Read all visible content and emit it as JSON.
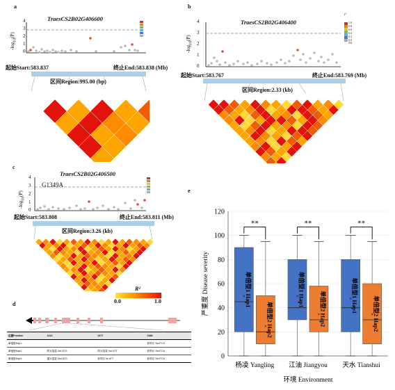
{
  "panels": {
    "a": {
      "label": "a",
      "title": "TraesCS2B02G406600",
      "start": "起始Start:583.837",
      "end": "终止End:583.838 (Mb)",
      "region": "区间Region:995.00 (bp)",
      "y_ticks": [
        "0",
        "1",
        "2",
        "3",
        "4"
      ]
    },
    "b": {
      "label": "b",
      "title": "TraesCS2B02G406400",
      "start": "起始Start:583.767",
      "end": "终止End:583.769 (Mb)",
      "region": "区间Region:2.33 (kb)",
      "y_ticks": [
        "0",
        "1",
        "2",
        "3",
        "4"
      ],
      "legend_title": "r²",
      "legend_values": [
        "1.0",
        "0.8",
        "0.6",
        "0.4",
        "0.2",
        "0.0",
        "NA"
      ]
    },
    "c": {
      "label": "c",
      "title": "TraesCS2B02G406500",
      "start": "起始Start:583.808",
      "end": "终止End:583.811 (Mb)",
      "region": "区间Region:3.26 (kb)",
      "snp": "G1349A",
      "y_ticks": [
        "0",
        "1",
        "2",
        "3",
        "4"
      ]
    },
    "ld_scale": {
      "title": "R²",
      "min": "0.0",
      "max": "1.0"
    },
    "d": {
      "label": "d",
      "table": {
        "header": [
          "位置Position",
          "1413",
          "2377",
          "2388"
        ],
        "rows": [
          [
            "单倍型Hap1",
            "",
            "",
            "非同义 Ser/TCG"
          ],
          [
            "单倍型Hap2",
            "同义突变 Val GTG",
            "同义突变 Val GTT",
            "非同义 Ser/TCA"
          ],
          [
            "单倍型Hap3",
            "错义突变 Met ATG",
            "非同义 Ile ATT",
            "非同义 Ser/TCA"
          ]
        ]
      }
    },
    "e": {
      "label": "e",
      "ylabel": "严重度 Disease severity",
      "xlabel": "环境 Environment"
    }
  },
  "chart_data": {
    "type": "box",
    "categories": [
      "杨凌 Yangling",
      "江油 Jiangyou",
      "天水 Tianshui"
    ],
    "ylim": [
      0,
      120
    ],
    "yticks": [
      0,
      20,
      40,
      60,
      80,
      100,
      120
    ],
    "grid": true,
    "significance": [
      "**",
      "**",
      "**"
    ],
    "series": [
      {
        "name": "单倍型1 Hap1",
        "color": "#4472C4",
        "boxes": [
          {
            "min": 0,
            "q1": 20,
            "median": 45,
            "mean": 50,
            "q3": 90,
            "max": 100
          },
          {
            "min": 0,
            "q1": 30,
            "median": 40,
            "mean": 50,
            "q3": 80,
            "max": 100
          },
          {
            "min": 0,
            "q1": 20,
            "median": 40,
            "mean": 48,
            "q3": 80,
            "max": 100
          }
        ]
      },
      {
        "name": "单倍型2 Hap2",
        "color": "#ED7D31",
        "boxes": [
          {
            "min": 0,
            "q1": 10,
            "median": 20,
            "mean": 25,
            "q3": 50,
            "max": 95
          },
          {
            "min": 0,
            "q1": 20,
            "median": 30,
            "mean": 35,
            "q3": 58,
            "max": 95
          },
          {
            "min": 0,
            "q1": 10,
            "median": 30,
            "mean": 35,
            "q3": 60,
            "max": 95
          }
        ]
      }
    ]
  }
}
